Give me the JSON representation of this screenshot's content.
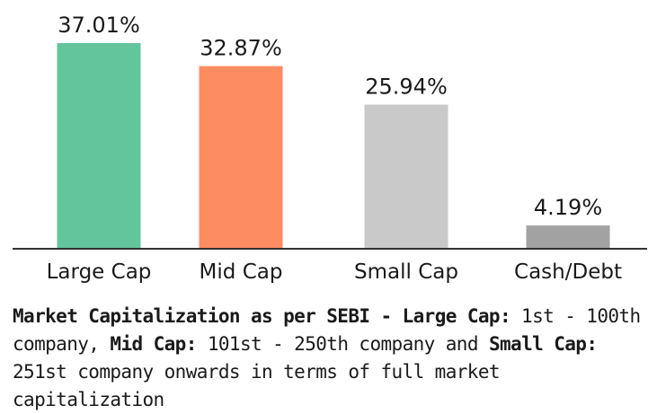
{
  "chart_data": {
    "type": "bar",
    "categories": [
      "Large Cap",
      "Mid Cap",
      "Small Cap",
      "Cash/Debt"
    ],
    "values": [
      37.01,
      32.87,
      25.94,
      4.19
    ],
    "value_labels": [
      "37.01%",
      "32.87%",
      "25.94%",
      "4.19%"
    ],
    "colors": [
      "#63c59c",
      "#fd8c62",
      "#c9c9c9",
      "#a2a2a2"
    ],
    "ylim": [
      0,
      37.01
    ],
    "grid": false,
    "legend": "none",
    "axis_color": "#333333"
  },
  "footnote": {
    "title": "Market Capitalization as per SEBI -",
    "large_label": "Large Cap:",
    "large_text": "1st - 100th company,",
    "mid_label": "Mid Cap:",
    "mid_text": "101st - 250th company and",
    "small_label": "Small Cap:",
    "small_text": "251st company onwards in terms of full market capitalization"
  }
}
